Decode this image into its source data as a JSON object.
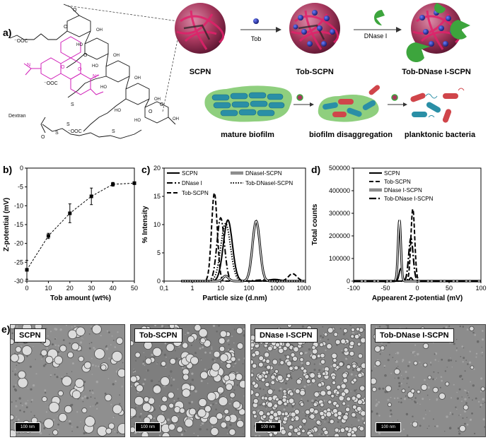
{
  "labels": {
    "a": "a)",
    "b": "b)",
    "c": "c)",
    "d": "d)",
    "e": "e)"
  },
  "panel_a": {
    "structure": {
      "dextran": "Dextran",
      "ooc_top": "⁻OOC",
      "ooc_bottom": "⁻OOC",
      "ooc_side": "⁻OOC"
    },
    "steps": {
      "tob": "Tob",
      "dnase": "DNase I"
    },
    "particles": {
      "scpn": "SCPN",
      "tob_scpn": "Tob-SCPN",
      "tob_dnase_scpn": "Tob-DNase I-SCPN"
    },
    "biofilm": {
      "mature": "mature biofilm",
      "disaggregation": "biofilm disaggregation",
      "planktonic": "planktonic bacteria"
    },
    "colors": {
      "particle": "#a8385e",
      "network": "#e0206a",
      "drug": "#1d2a8f",
      "enzyme": "#3da53d",
      "biofilm": "#8fcf7e",
      "bacteria": "#2a8fa6"
    }
  },
  "chart_data": [
    {
      "panel": "b",
      "type": "line",
      "x": [
        0,
        10,
        20,
        30,
        40,
        50
      ],
      "values": [
        -27,
        -18,
        -12,
        -7.5,
        -4.3,
        -4
      ],
      "errors": [
        2.5,
        0.7,
        2.5,
        2.2,
        0.5,
        0
      ],
      "xlabel": "Tob amount (wt%)",
      "ylabel": "Z-potential (mV)",
      "xlim": [
        0,
        50
      ],
      "ylim": [
        -30,
        0
      ],
      "xticks": [
        "0",
        "10",
        "20",
        "30",
        "40",
        "50"
      ],
      "yticks": [
        "0",
        "-5",
        "-10",
        "-15",
        "-20",
        "-25",
        "-30"
      ]
    },
    {
      "panel": "c",
      "type": "line",
      "xscale": "log",
      "xlabel": "Particle size (d.nm)",
      "ylabel": "% Intensity",
      "xlim": [
        0.1,
        10000
      ],
      "ylim": [
        0,
        20
      ],
      "xticks": [
        "0,1",
        "1",
        "10",
        "100",
        "1000",
        "10000"
      ],
      "yticks": [
        "0",
        "5",
        "10",
        "15",
        "20"
      ],
      "legend": [
        "SCPN",
        "DNase I",
        "Tob-SCPN",
        "DNaseI-SCPN",
        "Tob-DNaseI-SCPN"
      ],
      "series": [
        {
          "name": "SCPN",
          "peaks": [
            {
              "mu": 18,
              "h": 10.8,
              "w": 0.16
            },
            {
              "mu": 800,
              "h": 0.3,
              "w": 0.2
            }
          ]
        },
        {
          "name": "DNase I",
          "peaks": [
            {
              "mu": 10,
              "h": 11.2,
              "w": 0.13
            },
            {
              "mu": 300,
              "h": 0.2,
              "w": 0.25
            }
          ]
        },
        {
          "name": "Tob-SCPN",
          "peaks": [
            {
              "mu": 6,
              "h": 15.6,
              "w": 0.1
            },
            {
              "mu": 3500,
              "h": 1.3,
              "w": 0.15
            }
          ]
        },
        {
          "name": "DNaseI-SCPN",
          "peaks": [
            {
              "mu": 180,
              "h": 10.6,
              "w": 0.13
            },
            {
              "mu": 15,
              "h": 0.9,
              "w": 0.1
            }
          ]
        },
        {
          "name": "Tob-DNaseI-SCPN",
          "peaks": [
            {
              "mu": 15,
              "h": 10.2,
              "w": 0.17
            }
          ]
        }
      ]
    },
    {
      "panel": "d",
      "type": "line",
      "xlabel": "Appearent Z-potential (mV)",
      "ylabel": "Total counts",
      "xlim": [
        -100,
        100
      ],
      "ylim": [
        0,
        500000
      ],
      "xticks": [
        "-100",
        "-50",
        "0",
        "50",
        "100"
      ],
      "yticks": [
        "0",
        "100000",
        "200000",
        "300000",
        "400000",
        "500000"
      ],
      "legend": [
        "SCPN",
        "Tob-SCPN",
        "DNase I-SCPN",
        "Tob-DNase I-SCPN"
      ],
      "series": [
        {
          "name": "SCPN",
          "peaks": [
            {
              "mu": -26,
              "h": 55000,
              "w": 2.5
            },
            {
              "mu": -10,
              "h": 15000,
              "w": 2
            }
          ]
        },
        {
          "name": "Tob-SCPN",
          "peaks": [
            {
              "mu": -7,
              "h": 320000,
              "w": 3
            }
          ]
        },
        {
          "name": "DNase I-SCPN",
          "peaks": [
            {
              "mu": -28,
              "h": 270000,
              "w": 2.2
            }
          ]
        },
        {
          "name": "Tob-DNase I-SCPN",
          "peaks": [
            {
              "mu": -10,
              "h": 190000,
              "w": 3.5
            }
          ]
        }
      ]
    }
  ],
  "panel_e": {
    "images": [
      {
        "label": "SCPN",
        "scale": "100 nm"
      },
      {
        "label": "Tob-SCPN",
        "scale": "100 nm"
      },
      {
        "label": "DNase I-SCPN",
        "scale": "100 nm"
      },
      {
        "label": "Tob-DNase I-SCPN",
        "scale": "100 nm"
      }
    ]
  }
}
